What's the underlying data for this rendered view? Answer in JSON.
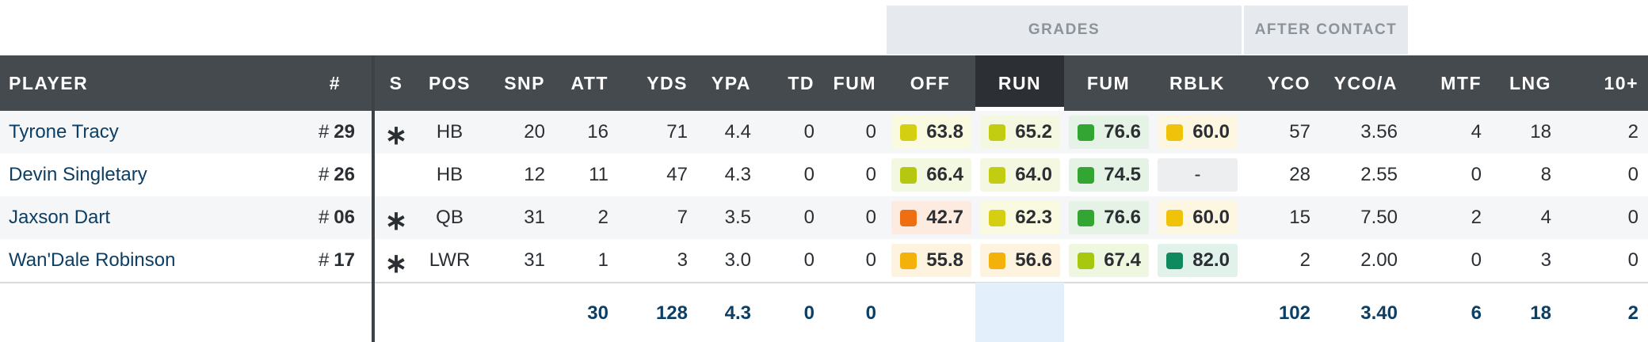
{
  "group_headers": {
    "grades": "GRADES",
    "after_contact": "AFTER CONTACT"
  },
  "columns": {
    "player": "PLAYER",
    "num": "#",
    "s": "S",
    "pos": "POS",
    "snp": "SNP",
    "att": "ATT",
    "yds": "YDS",
    "ypa": "YPA",
    "td": "TD",
    "fum": "FUM",
    "off": "OFF",
    "run": "RUN",
    "fum_grade": "FUM",
    "rblk": "RBLK",
    "yco": "YCO",
    "yco_a": "YCO/A",
    "mtf": "MTF",
    "lng": "LNG",
    "ten_plus": "10+"
  },
  "active_sort_column": "RUN",
  "grade_colors": {
    "very_high": "#0f8a5f",
    "high": "#33a532",
    "above_avg": "#a8c80f",
    "average": "#d4cf11",
    "below_avg": "#f3b10a",
    "low": "#f06e12"
  },
  "rows": [
    {
      "name": "Tyrone Tracy",
      "hash": "#",
      "num": "29",
      "starter": "∗",
      "pos": "HB",
      "snp": "20",
      "att": "16",
      "yds": "71",
      "ypa": "4.4",
      "td": "0",
      "fum": "0",
      "off": {
        "value": "63.8",
        "color": "#d4cf11",
        "bg": "#fafae0"
      },
      "run": {
        "value": "65.2",
        "color": "#c2cc10",
        "bg": "#f5f8e0"
      },
      "fum_grade": {
        "value": "76.6",
        "color": "#33a532",
        "bg": "#e4f3e6"
      },
      "rblk": {
        "value": "60.0",
        "color": "#f0c30a",
        "bg": "#fdf6e0"
      },
      "yco": "57",
      "yco_a": "3.56",
      "mtf": "4",
      "lng": "18",
      "ten_plus": "2"
    },
    {
      "name": "Devin Singletary",
      "hash": "#",
      "num": "26",
      "starter": "",
      "pos": "HB",
      "snp": "12",
      "att": "11",
      "yds": "47",
      "ypa": "4.3",
      "td": "0",
      "fum": "0",
      "off": {
        "value": "66.4",
        "color": "#b5c80f",
        "bg": "#f3f8e1"
      },
      "run": {
        "value": "64.0",
        "color": "#c2cc10",
        "bg": "#f5f8e0"
      },
      "fum_grade": {
        "value": "74.5",
        "color": "#33a532",
        "bg": "#e4f3e6"
      },
      "rblk": {
        "value": "-",
        "color": "",
        "bg": "#eceef0"
      },
      "yco": "28",
      "yco_a": "2.55",
      "mtf": "0",
      "lng": "8",
      "ten_plus": "0"
    },
    {
      "name": "Jaxson Dart",
      "hash": "#",
      "num": "06",
      "starter": "∗",
      "pos": "QB",
      "snp": "31",
      "att": "2",
      "yds": "7",
      "ypa": "3.5",
      "td": "0",
      "fum": "0",
      "off": {
        "value": "42.7",
        "color": "#f06e12",
        "bg": "#fdebe0"
      },
      "run": {
        "value": "62.3",
        "color": "#d4cf11",
        "bg": "#fafae0"
      },
      "fum_grade": {
        "value": "76.6",
        "color": "#33a532",
        "bg": "#e4f3e6"
      },
      "rblk": {
        "value": "60.0",
        "color": "#f0c30a",
        "bg": "#fdf6e0"
      },
      "yco": "15",
      "yco_a": "7.50",
      "mtf": "2",
      "lng": "4",
      "ten_plus": "0"
    },
    {
      "name": "Wan'Dale Robinson",
      "hash": "#",
      "num": "17",
      "starter": "∗",
      "pos": "LWR",
      "snp": "31",
      "att": "1",
      "yds": "3",
      "ypa": "3.0",
      "td": "0",
      "fum": "0",
      "off": {
        "value": "55.8",
        "color": "#f3b10a",
        "bg": "#fdf3de"
      },
      "run": {
        "value": "56.6",
        "color": "#f3b10a",
        "bg": "#fdf3de"
      },
      "fum_grade": {
        "value": "67.4",
        "color": "#a8c80f",
        "bg": "#f0f7e0"
      },
      "rblk": {
        "value": "82.0",
        "color": "#0f8a5f",
        "bg": "#e0f2ea"
      },
      "yco": "2",
      "yco_a": "2.00",
      "mtf": "0",
      "lng": "3",
      "ten_plus": "0"
    }
  ],
  "totals": {
    "att": "30",
    "yds": "128",
    "ypa": "4.3",
    "td": "0",
    "fum": "0",
    "yco": "102",
    "yco_a": "3.40",
    "mtf": "6",
    "lng": "18",
    "ten_plus": "2"
  }
}
